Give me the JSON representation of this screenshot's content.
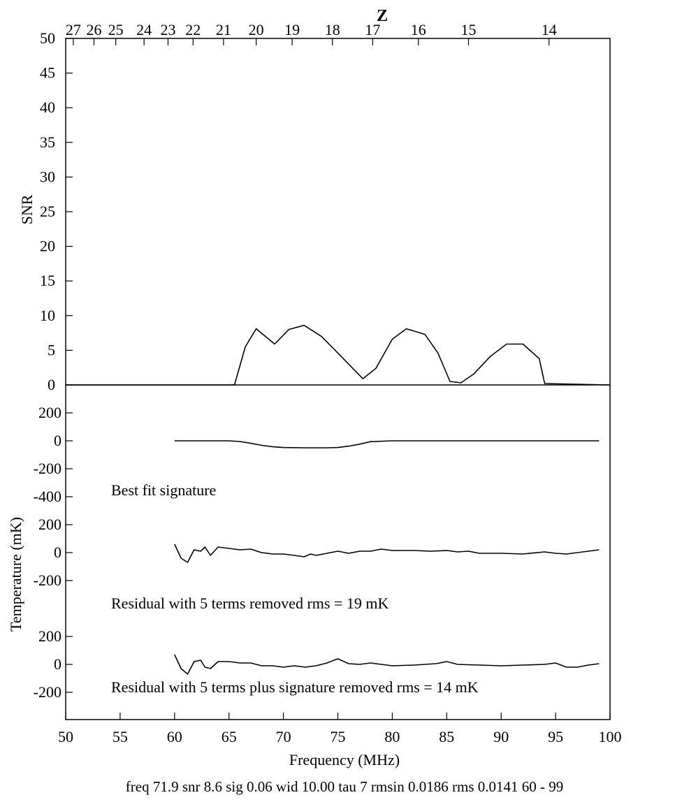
{
  "chart_data": {
    "type": "line",
    "top_axis": {
      "title": "Z",
      "tick_labels": [
        "27",
        "26",
        "25",
        "24",
        "23",
        "22",
        "21",
        "20",
        "19",
        "18",
        "17",
        "16",
        "15",
        "14"
      ],
      "tick_freqs_mhz": [
        50.7,
        52.6,
        54.6,
        57.2,
        59.4,
        61.7,
        64.5,
        67.5,
        70.8,
        74.5,
        78.2,
        82.4,
        87.0,
        94.4
      ]
    },
    "x_axis": {
      "label": "Frequency (MHz)",
      "range": [
        50,
        100
      ],
      "ticks": [
        50,
        55,
        60,
        65,
        70,
        75,
        80,
        85,
        90,
        95,
        100
      ]
    },
    "snr_panel": {
      "ylabel": "SNR",
      "ylim": [
        0,
        50
      ],
      "ticks": [
        0,
        5,
        10,
        15,
        20,
        25,
        30,
        35,
        40,
        45,
        50
      ],
      "series": [
        {
          "x": [
            50,
            65.5,
            66.5,
            67.5,
            68.5,
            69.2,
            70.5,
            71.9,
            73.5,
            75.5,
            77.3,
            78.5,
            80,
            81.3,
            83,
            84.2,
            85.3,
            86.3,
            87.5,
            89,
            90.5,
            92,
            93.5,
            94,
            100
          ],
          "y": [
            0,
            0,
            5.5,
            8.1,
            6.8,
            5.9,
            8.0,
            8.6,
            7.0,
            3.8,
            0.9,
            2.4,
            6.6,
            8.1,
            7.3,
            4.6,
            0.5,
            0.3,
            1.6,
            4.1,
            5.9,
            5.9,
            3.8,
            0.2,
            0
          ]
        }
      ]
    },
    "temperature_panel": {
      "ylabel": "Temperature (mK)",
      "ylim": [
        -400,
        200
      ],
      "ticks": [
        -400,
        -200,
        0,
        200
      ],
      "subpanels": [
        {
          "annotation": "Best fit signature",
          "series": [
            {
              "x": [
                60,
                65,
                66,
                67,
                68,
                69,
                70,
                72,
                74,
                75,
                76,
                77,
                78,
                80,
                85,
                90,
                95,
                99
              ],
              "y": [
                0,
                0,
                -5,
                -18,
                -32,
                -42,
                -48,
                -50,
                -50,
                -48,
                -38,
                -24,
                -6,
                0,
                0,
                0,
                0,
                0
              ]
            }
          ]
        },
        {
          "annotation": "Residual with 5 terms removed rms =  19 mK",
          "series": [
            {
              "x": [
                60,
                60.6,
                61.2,
                61.8,
                62.4,
                62.8,
                63.3,
                64,
                65,
                66,
                67,
                68,
                69,
                70,
                71,
                71.9,
                72.5,
                73,
                74,
                75,
                76,
                77,
                78,
                79,
                80,
                82,
                83.5,
                85,
                86,
                87,
                88,
                90,
                92,
                94,
                95,
                96,
                97,
                98,
                99
              ],
              "y": [
                60,
                -40,
                -70,
                20,
                10,
                40,
                -20,
                40,
                30,
                20,
                25,
                0,
                -10,
                -10,
                -20,
                -30,
                -10,
                -20,
                -5,
                10,
                -5,
                10,
                10,
                25,
                15,
                15,
                10,
                15,
                5,
                10,
                -5,
                -5,
                -10,
                5,
                -5,
                -10,
                0,
                10,
                20
              ]
            }
          ]
        },
        {
          "annotation": "Residual with 5 terms plus signature removed rms =  14 mK",
          "series": [
            {
              "x": [
                60,
                60.6,
                61.2,
                61.8,
                62.4,
                62.8,
                63.3,
                64,
                65,
                66,
                67,
                68,
                69,
                70,
                71,
                72,
                73,
                74,
                75,
                76,
                77,
                78,
                80,
                82,
                84,
                85,
                86,
                88,
                90,
                92,
                94,
                95,
                96,
                97,
                98,
                99
              ],
              "y": [
                70,
                -30,
                -70,
                20,
                30,
                -20,
                -30,
                20,
                20,
                10,
                10,
                -10,
                -10,
                -20,
                -10,
                -20,
                -10,
                10,
                40,
                5,
                0,
                10,
                -10,
                -5,
                5,
                20,
                0,
                -5,
                -10,
                -5,
                0,
                10,
                -20,
                -20,
                -5,
                5
              ]
            }
          ]
        }
      ]
    },
    "footer": "freq 71.9 snr  8.6 sig 0.06 wid 10.00 tau  7 rmsin 0.0186 rms 0.0141 60 - 99"
  }
}
